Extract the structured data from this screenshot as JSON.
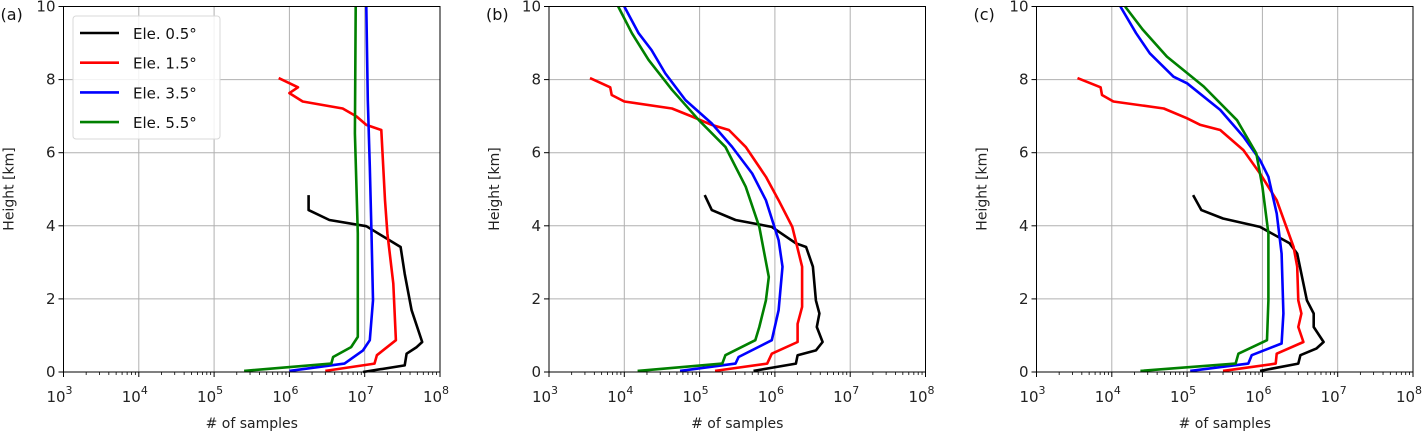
{
  "chart_data": [
    {
      "type": "line",
      "panel_label": "(a)",
      "xlabel": "# of samples",
      "ylabel": "Height [km]",
      "xscale": "log",
      "xlim": [
        1000,
        100000000
      ],
      "ylim": [
        0,
        10
      ],
      "xticks": [
        1000,
        10000,
        100000,
        1000000,
        10000000,
        100000000
      ],
      "xtick_labels": [
        [
          "10",
          "3"
        ],
        [
          "10",
          "4"
        ],
        [
          "10",
          "5"
        ],
        [
          "10",
          "6"
        ],
        [
          "10",
          "7"
        ],
        [
          "10",
          "8"
        ]
      ],
      "yticks": [
        0,
        2,
        4,
        6,
        8,
        10
      ],
      "grid": true,
      "legend": {
        "placement": "top-left",
        "entries": [
          "Ele. 0.5°",
          "Ele. 1.5°",
          "Ele. 3.5°",
          "Ele. 5.5°"
        ]
      },
      "series": [
        {
          "name": "Ele. 0.5°",
          "color": "#000000",
          "points": [
            [
              1800000.0,
              4.84
            ],
            [
              1800000.0,
              4.43
            ],
            [
              3400000.0,
              4.16
            ],
            [
              10500000.0,
              3.99
            ],
            [
              30000000.0,
              3.42
            ],
            [
              34000000.0,
              2.69
            ],
            [
              42000000.0,
              1.69
            ],
            [
              58000000.0,
              0.82
            ],
            [
              49000000.0,
              0.68
            ],
            [
              36000000.0,
              0.5
            ],
            [
              34000000.0,
              0.18
            ],
            [
              9500000.0,
              0
            ]
          ]
        },
        {
          "name": "Ele. 1.5°",
          "color": "#ff0000",
          "points": [
            [
              720000.0,
              8.04
            ],
            [
              1300000.0,
              7.79
            ],
            [
              1000000.0,
              7.63
            ],
            [
              1500000.0,
              7.4
            ],
            [
              5100000.0,
              7.21
            ],
            [
              7800000.0,
              6.99
            ],
            [
              10500000.0,
              6.76
            ],
            [
              16600000.0,
              6.62
            ],
            [
              18600000.0,
              4.7
            ],
            [
              20000000.0,
              3.79
            ],
            [
              24000000.0,
              2.42
            ],
            [
              26000000.0,
              0.87
            ],
            [
              14500000.0,
              0.46
            ],
            [
              13500000.0,
              0.23
            ],
            [
              3000000.0,
              0.03
            ]
          ]
        },
        {
          "name": "Ele. 3.5°",
          "color": "#0000ff",
          "points": [
            [
              10500000.0,
              10
            ],
            [
              11000000.0,
              7.44
            ],
            [
              11700000.0,
              5.62
            ],
            [
              12300000.0,
              3.79
            ],
            [
              12900000.0,
              1.96
            ],
            [
              11700000.0,
              0.87
            ],
            [
              9500000.0,
              0.59
            ],
            [
              5400000.0,
              0.23
            ],
            [
              1000000.0,
              0.03
            ]
          ]
        },
        {
          "name": "Ele. 5.5°",
          "color": "#008000",
          "points": [
            [
              7600000.0,
              10
            ],
            [
              7400000.0,
              6.53
            ],
            [
              8100000.0,
              3.79
            ],
            [
              8100000.0,
              0.96
            ],
            [
              6600000.0,
              0.68
            ],
            [
              3800000.0,
              0.41
            ],
            [
              3600000.0,
              0.23
            ],
            [
              250000.0,
              0.03
            ]
          ]
        }
      ]
    },
    {
      "type": "line",
      "panel_label": "(b)",
      "xlabel": "# of samples",
      "ylabel": "Height [km]",
      "xscale": "log",
      "xlim": [
        1000,
        100000000
      ],
      "ylim": [
        0,
        10
      ],
      "xticks": [
        1000,
        10000,
        100000,
        1000000,
        10000000,
        100000000
      ],
      "xtick_labels": [
        [
          "10",
          "3"
        ],
        [
          "10",
          "4"
        ],
        [
          "10",
          "5"
        ],
        [
          "10",
          "6"
        ],
        [
          "10",
          "7"
        ],
        [
          "10",
          "8"
        ]
      ],
      "yticks": [
        0,
        2,
        4,
        6,
        8,
        10
      ],
      "grid": true,
      "series": [
        {
          "name": "Ele. 0.5°",
          "color": "#000000",
          "points": [
            [
              117000.0,
              4.84
            ],
            [
              145000.0,
              4.43
            ],
            [
              300000.0,
              4.16
            ],
            [
              910000.0,
              3.97
            ],
            [
              1900000.0,
              3.52
            ],
            [
              2600000.0,
              3.42
            ],
            [
              3200000.0,
              2.88
            ],
            [
              3500000.0,
              1.96
            ],
            [
              3900000.0,
              1.6
            ],
            [
              3600000.0,
              1.23
            ],
            [
              4300000.0,
              0.82
            ],
            [
              3500000.0,
              0.59
            ],
            [
              2000000.0,
              0.46
            ],
            [
              1900000.0,
              0.23
            ],
            [
              520000.0,
              0.03
            ]
          ]
        },
        {
          "name": "Ele. 1.5°",
          "color": "#ff0000",
          "points": [
            [
              3500.0,
              8.04
            ],
            [
              6500.0,
              7.79
            ],
            [
              6800.0,
              7.58
            ],
            [
              10000.0,
              7.4
            ],
            [
              43000.0,
              7.21
            ],
            [
              79000.0,
              6.99
            ],
            [
              145000.0,
              6.76
            ],
            [
              245000.0,
              6.62
            ],
            [
              410000.0,
              6.16
            ],
            [
              760000.0,
              5.34
            ],
            [
              1120000.0,
              4.7
            ],
            [
              1700000.0,
              3.97
            ],
            [
              2300000.0,
              2.88
            ],
            [
              2300000.0,
              1.78
            ],
            [
              2000000.0,
              1.32
            ],
            [
              2000000.0,
              0.82
            ],
            [
              910000.0,
              0.5
            ],
            [
              790000.0,
              0.23
            ],
            [
              160000.0,
              0.03
            ]
          ]
        },
        {
          "name": "Ele. 3.5°",
          "color": "#0000ff",
          "points": [
            [
              10000.0,
              10
            ],
            [
              15500.0,
              9.27
            ],
            [
              23000.0,
              8.81
            ],
            [
              35000.0,
              8.17
            ],
            [
              65000.0,
              7.44
            ],
            [
              145000.0,
              6.8
            ],
            [
              270000.0,
              6.16
            ],
            [
              500000.0,
              5.43
            ],
            [
              760000.0,
              4.7
            ],
            [
              1120000.0,
              3.61
            ],
            [
              1260000.0,
              2.88
            ],
            [
              1120000.0,
              1.69
            ],
            [
              910000.0,
              0.87
            ],
            [
              330000.0,
              0.41
            ],
            [
              300000.0,
              0.23
            ],
            [
              55000.0,
              0.03
            ]
          ]
        },
        {
          "name": "Ele. 5.5°",
          "color": "#008000",
          "points": [
            [
              8300.0,
              10
            ],
            [
              12600.0,
              9.27
            ],
            [
              21000.0,
              8.54
            ],
            [
              43000.0,
              7.72
            ],
            [
              98000.0,
              6.89
            ],
            [
              220000.0,
              6.16
            ],
            [
              410000.0,
              5.07
            ],
            [
              620000.0,
              3.97
            ],
            [
              830000.0,
              2.6
            ],
            [
              760000.0,
              1.96
            ],
            [
              620000.0,
              1.23
            ],
            [
              550000.0,
              0.87
            ],
            [
              220000.0,
              0.46
            ],
            [
              200000.0,
              0.23
            ],
            [
              15000.0,
              0.03
            ]
          ]
        }
      ]
    },
    {
      "type": "line",
      "panel_label": "(c)",
      "xlabel": "# of samples",
      "ylabel": "Height [km]",
      "xscale": "log",
      "xlim": [
        1000,
        100000000
      ],
      "ylim": [
        0,
        10
      ],
      "xticks": [
        1000,
        10000,
        100000,
        1000000,
        10000000,
        100000000
      ],
      "xtick_labels": [
        [
          "10",
          "3"
        ],
        [
          "10",
          "4"
        ],
        [
          "10",
          "5"
        ],
        [
          "10",
          "6"
        ],
        [
          "10",
          "7"
        ],
        [
          "10",
          "8"
        ]
      ],
      "yticks": [
        0,
        2,
        4,
        6,
        8,
        10
      ],
      "grid": true,
      "series": [
        {
          "name": "Ele. 0.5°",
          "color": "#000000",
          "points": [
            [
              120000.0,
              4.84
            ],
            [
              155000.0,
              4.43
            ],
            [
              300000.0,
              4.2
            ],
            [
              930000.0,
              3.97
            ],
            [
              2300000.0,
              3.52
            ],
            [
              2900000.0,
              3.24
            ],
            [
              3500000.0,
              2.42
            ],
            [
              3900000.0,
              1.96
            ],
            [
              4800000.0,
              1.6
            ],
            [
              4800000.0,
              1.23
            ],
            [
              6500000.0,
              0.82
            ],
            [
              5200000.0,
              0.64
            ],
            [
              3200000.0,
              0.46
            ],
            [
              3000000.0,
              0.23
            ],
            [
              930000.0,
              0.03
            ]
          ]
        },
        {
          "name": "Ele. 1.5°",
          "color": "#ff0000",
          "points": [
            [
              3500.0,
              8.04
            ],
            [
              7100.0,
              7.79
            ],
            [
              7400.0,
              7.58
            ],
            [
              10500.0,
              7.4
            ],
            [
              49000.0,
              7.21
            ],
            [
              100000.0,
              6.94
            ],
            [
              150000.0,
              6.76
            ],
            [
              275000.0,
              6.62
            ],
            [
              560000.0,
              6.07
            ],
            [
              930000.0,
              5.43
            ],
            [
              1550000.0,
              4.7
            ],
            [
              2600000.0,
              3.42
            ],
            [
              2900000.0,
              2.88
            ],
            [
              3000000.0,
              1.96
            ],
            [
              3300000.0,
              1.6
            ],
            [
              3000000.0,
              1.23
            ],
            [
              3500000.0,
              0.82
            ],
            [
              1550000.0,
              0.5
            ],
            [
              1500000.0,
              0.23
            ],
            [
              300000.0,
              0.03
            ]
          ]
        },
        {
          "name": "Ele. 3.5°",
          "color": "#0000ff",
          "points": [
            [
              13000.0,
              10
            ],
            [
              21000.0,
              9.27
            ],
            [
              32000.0,
              8.72
            ],
            [
              66000.0,
              8.08
            ],
            [
              100000.0,
              7.9
            ],
            [
              275000.0,
              7.17
            ],
            [
              560000.0,
              6.44
            ],
            [
              930000.0,
              5.8
            ],
            [
              1200000.0,
              5.34
            ],
            [
              1550000.0,
              4.34
            ],
            [
              1800000.0,
              3.24
            ],
            [
              1900000.0,
              1.6
            ],
            [
              1800000.0,
              0.78
            ],
            [
              720000.0,
              0.46
            ],
            [
              650000.0,
              0.23
            ],
            [
              110000.0,
              0.03
            ]
          ]
        },
        {
          "name": "Ele. 5.5°",
          "color": "#008000",
          "points": [
            [
              15000.0,
              10
            ],
            [
              26000.0,
              9.36
            ],
            [
              54000.0,
              8.63
            ],
            [
              166000.0,
              7.81
            ],
            [
              460000.0,
              6.89
            ],
            [
              830000.0,
              5.98
            ],
            [
              1000000.0,
              5.07
            ],
            [
              1200000.0,
              3.79
            ],
            [
              1200000.0,
              1.96
            ],
            [
              1150000.0,
              0.87
            ],
            [
              480000.0,
              0.5
            ],
            [
              440000.0,
              0.23
            ],
            [
              24000.0,
              0.03
            ]
          ]
        }
      ]
    }
  ]
}
